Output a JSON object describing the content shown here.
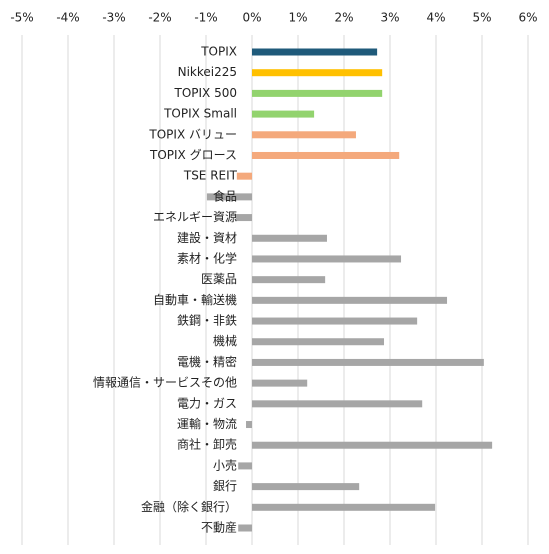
{
  "chart_data": {
    "type": "barh",
    "categories": [
      "TOPIX",
      "Nikkei225",
      "TOPIX 500",
      "TOPIX Small",
      "TOPIX バリュー",
      "TOPIX グロース",
      "TSE REIT",
      "食品",
      "エネルギー資源",
      "建設・資材",
      "素材・化学",
      "医薬品",
      "自動車・輸送機",
      "鉄鋼・非鉄",
      "機械",
      "電機・精密",
      "情報通信・サービスその他",
      "電力・ガス",
      "運輸・物流",
      "商社・卸売",
      "小売",
      "銀行",
      "金融（除く銀行）",
      "不動産"
    ],
    "values": [
      2.72,
      2.83,
      2.83,
      1.35,
      2.26,
      3.2,
      -0.33,
      -0.98,
      -0.35,
      1.63,
      3.24,
      1.59,
      4.24,
      3.59,
      2.87,
      5.04,
      1.2,
      3.7,
      -0.13,
      5.22,
      -0.3,
      2.33,
      3.98,
      -0.3
    ],
    "colors": [
      "#1f5a7a",
      "#ffc000",
      "#92d36e",
      "#92d36e",
      "#f4a97c",
      "#f4a97c",
      "#f4a97c",
      "#a6a6a6",
      "#a6a6a6",
      "#a6a6a6",
      "#a6a6a6",
      "#a6a6a6",
      "#a6a6a6",
      "#a6a6a6",
      "#a6a6a6",
      "#a6a6a6",
      "#a6a6a6",
      "#a6a6a6",
      "#a6a6a6",
      "#a6a6a6",
      "#a6a6a6",
      "#a6a6a6",
      "#a6a6a6",
      "#a6a6a6"
    ],
    "xlim": [
      -5,
      6
    ],
    "xticks": [
      {
        "value": -5,
        "label": "-5%"
      },
      {
        "value": -4,
        "label": "-4%"
      },
      {
        "value": -3,
        "label": "-3%"
      },
      {
        "value": -2,
        "label": "-2%"
      },
      {
        "value": -1,
        "label": "-1%"
      },
      {
        "value": 0,
        "label": "0%"
      },
      {
        "value": 1,
        "label": "1%"
      },
      {
        "value": 2,
        "label": "2%"
      },
      {
        "value": 3,
        "label": "3%"
      },
      {
        "value": 4,
        "label": "4%"
      },
      {
        "value": 5,
        "label": "5%"
      },
      {
        "value": 6,
        "label": "6%"
      }
    ],
    "grid": true
  }
}
